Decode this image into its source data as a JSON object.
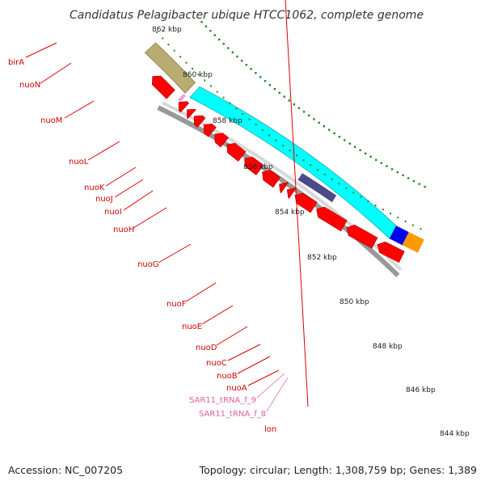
{
  "title": "Candidatus Pelagibacter ubique HTCC1062, complete genome",
  "footer": {
    "accession": "Accession: NC_007205",
    "summary": "Topology: circular; Length: 1,308,759 bp; Genes: 1,389"
  },
  "colors": {
    "cds": "#ff0000",
    "nuo_operon": "#00ffff",
    "nuo_subregion": "#4a4a8a",
    "lon_region": "#b8ac70",
    "orange_feature": "#ff9900",
    "blue_feature": "#0000ee",
    "trna": "#ff99cc",
    "backbone": "#999999",
    "ticks": "#228822",
    "gene_label": "#cc0000",
    "trna_label": "#e070aa"
  },
  "scale": {
    "unit": "kbp",
    "ticks": [
      {
        "label": "862 kbp",
        "kbp": 862
      },
      {
        "label": "860 kbp",
        "kbp": 860
      },
      {
        "label": "858 kbp",
        "kbp": 858
      },
      {
        "label": "856 kbp",
        "kbp": 856
      },
      {
        "label": "854 kbp",
        "kbp": 854
      },
      {
        "label": "852 kbp",
        "kbp": 852
      },
      {
        "label": "850 kbp",
        "kbp": 850
      },
      {
        "label": "848 kbp",
        "kbp": 848
      },
      {
        "label": "846 kbp",
        "kbp": 846
      },
      {
        "label": "844 kbp",
        "kbp": 844
      }
    ]
  },
  "features": [
    {
      "name": "birA",
      "type": "gene"
    },
    {
      "name": "nuoN",
      "type": "gene"
    },
    {
      "name": "nuoM",
      "type": "gene"
    },
    {
      "name": "nuoL",
      "type": "gene"
    },
    {
      "name": "nuoK",
      "type": "gene"
    },
    {
      "name": "nuoJ",
      "type": "gene"
    },
    {
      "name": "nuoI",
      "type": "gene"
    },
    {
      "name": "nuoH",
      "type": "gene"
    },
    {
      "name": "nuoG",
      "type": "gene"
    },
    {
      "name": "nuoF",
      "type": "gene"
    },
    {
      "name": "nuoE",
      "type": "gene"
    },
    {
      "name": "nuoD",
      "type": "gene"
    },
    {
      "name": "nuoC",
      "type": "gene"
    },
    {
      "name": "nuoB",
      "type": "gene"
    },
    {
      "name": "nuoA",
      "type": "gene"
    },
    {
      "name": "SAR11_tRNA_f_9",
      "type": "trna"
    },
    {
      "name": "SAR11_tRNA_f_8",
      "type": "trna"
    },
    {
      "name": "lon",
      "type": "gene"
    }
  ]
}
